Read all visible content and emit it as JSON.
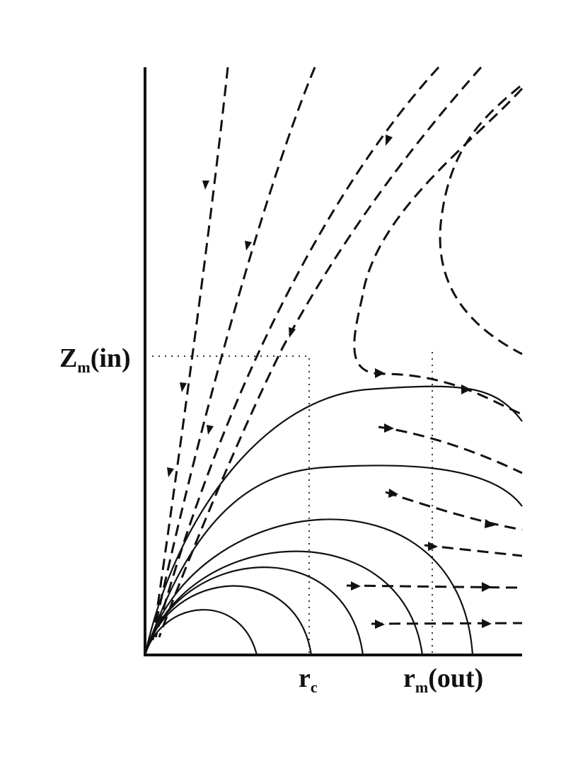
{
  "labels": {
    "z_label": {
      "symbol": "Z",
      "subscript": "m",
      "suffix": "(in)"
    },
    "rc_label": {
      "symbol": "r",
      "subscript": "c"
    },
    "rm_label": {
      "symbol": "r",
      "subscript": "m",
      "suffix": "(out)"
    }
  }
}
